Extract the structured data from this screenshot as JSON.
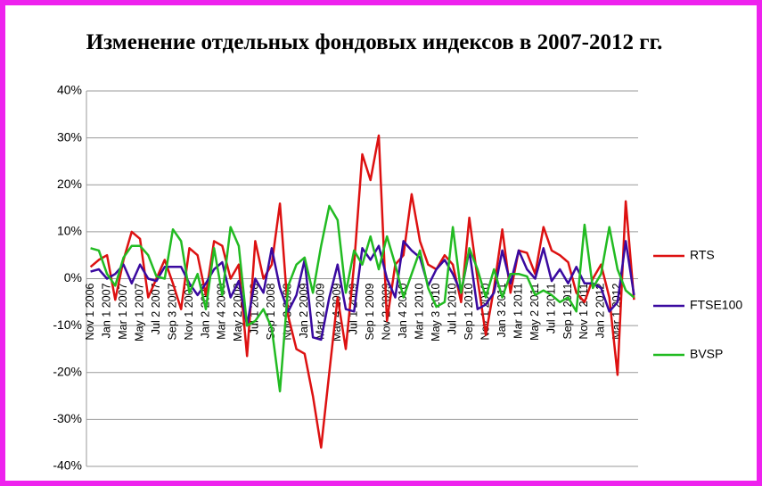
{
  "chart_data": {
    "type": "line",
    "title": "Изменение отдельных фондовых индексов в 2007-2012 гг.",
    "categories": [
      "Nov 1 2006",
      null,
      "Jan 1 2007",
      null,
      "Mar 1 2007",
      null,
      "May 1 2007",
      null,
      "Jul 2 2007",
      null,
      "Sep 3 2007",
      null,
      "Nov 1 2007",
      null,
      "Jan 2 2008",
      null,
      "Mar 4 2008",
      null,
      "May 2 2008",
      null,
      "Jul 1 2008",
      null,
      "Sep 1 2008",
      null,
      "Nov 3 2008",
      null,
      "Jan 2 2009",
      null,
      "Mar 2 2009",
      null,
      "May 4 2009",
      null,
      "Jul 1 2009",
      null,
      "Sep 1 2009",
      null,
      "Nov 2 2009",
      null,
      "Jan 4 2010",
      null,
      "Mar 1 2010",
      null,
      "May 3 2010",
      null,
      "Jul 1 2010",
      null,
      "Sep 1 2010",
      null,
      "Nov 1 2010",
      null,
      "Jan 3 2011",
      null,
      "Mar 1 2011",
      null,
      "May 2 2011",
      null,
      "Jul 1 2011",
      null,
      "Sep 1 2011",
      null,
      "Nov 1 2011",
      null,
      "Jan 2 2012",
      null,
      "Mar 1 2012",
      null,
      null
    ],
    "series": [
      {
        "name": "RTS",
        "color": "#dd1111",
        "values": [
          2.5,
          4,
          5,
          -4.5,
          4,
          10,
          8.5,
          -4,
          0,
          4,
          -1,
          -6.5,
          6.5,
          5,
          -3.5,
          8,
          7,
          0,
          3,
          -16.5,
          8,
          0,
          3,
          16,
          -8,
          -15,
          -16,
          -25,
          -36,
          -20,
          -4,
          -15,
          3,
          26.5,
          21,
          30.5,
          -9,
          3,
          5,
          18,
          8,
          3,
          2,
          5,
          3,
          -5,
          13,
          0,
          -12,
          -2,
          10.5,
          -3,
          6,
          5.5,
          1,
          11,
          6,
          5,
          3.5,
          -3,
          -5,
          0,
          3,
          -4,
          -20.5,
          16.5,
          -4.5
        ]
      },
      {
        "name": "FTSE100",
        "color": "#3a0aa0",
        "values": [
          1.5,
          2,
          0,
          1,
          3,
          -1,
          3,
          0,
          -0.5,
          2.5,
          2.5,
          2.5,
          -1,
          -3.5,
          -1,
          2,
          3.5,
          -4,
          -0.5,
          -10,
          0,
          -3,
          6.5,
          -2,
          -7,
          -3.5,
          4,
          -12.5,
          -13,
          -4,
          3,
          -6.5,
          -7,
          6.5,
          4,
          7,
          0,
          -4,
          8,
          6,
          4.5,
          -1.5,
          2,
          4,
          1,
          -3,
          6,
          -6.5,
          -5.5,
          -3,
          6,
          -1,
          6,
          2,
          0,
          6.5,
          -0.5,
          2,
          -1,
          2.5,
          -1,
          -1,
          -2,
          -7,
          -5,
          8,
          -3.5
        ]
      },
      {
        "name": "BVSP",
        "color": "#22bb22",
        "values": [
          6.5,
          6,
          1,
          -1.5,
          4.5,
          7,
          7,
          5,
          0.5,
          0,
          10.5,
          8,
          -3,
          1,
          -6.5,
          6.5,
          -3.5,
          11,
          7,
          -10,
          -9,
          -6.5,
          -10.5,
          -24,
          -1.5,
          3,
          4.5,
          -3,
          7,
          15.5,
          12.5,
          -3,
          6,
          3,
          9,
          2,
          9,
          3,
          -4,
          1,
          6,
          -2,
          -6,
          -5,
          11,
          -3,
          6.5,
          2,
          -4,
          2,
          -4,
          1,
          1,
          0.5,
          -3.5,
          -2.5,
          -3.5,
          -5,
          -4,
          -7,
          11.5,
          -2,
          1,
          11,
          2,
          -2.5,
          -4
        ]
      }
    ],
    "ylim": [
      -40,
      40
    ],
    "yticks": [
      {
        "value": -40,
        "label": "-40%"
      },
      {
        "value": -30,
        "label": "-30%"
      },
      {
        "value": -20,
        "label": "-20%"
      },
      {
        "value": -10,
        "label": "-10%"
      },
      {
        "value": 0,
        "label": "0%"
      },
      {
        "value": 10,
        "label": "10%"
      },
      {
        "value": 20,
        "label": "20%"
      },
      {
        "value": 30,
        "label": "30%"
      },
      {
        "value": 40,
        "label": "40%"
      }
    ],
    "grid": true,
    "legend": "right"
  }
}
